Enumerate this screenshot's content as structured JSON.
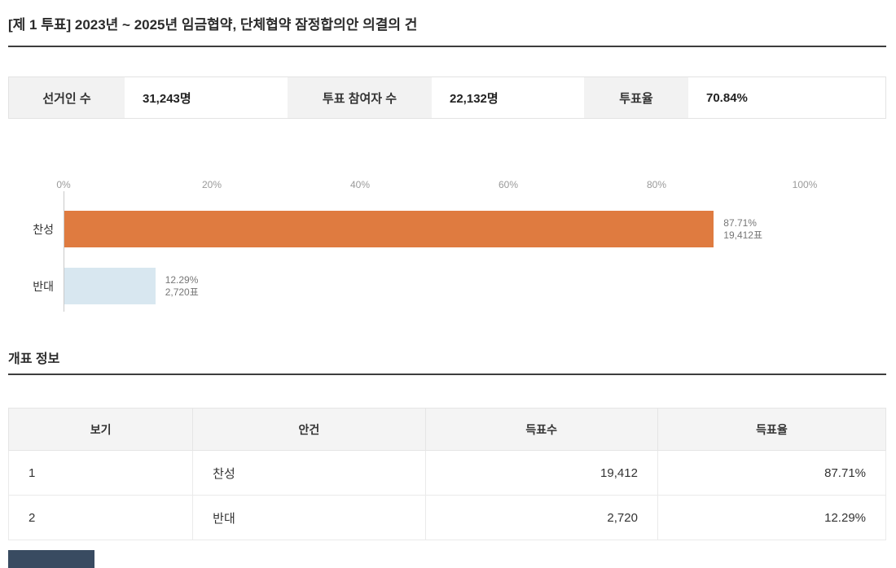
{
  "page": {
    "title": "[제 1 투표] 2023년 ~ 2025년 임금협약, 단체협약 잠정합의안 의결의 건"
  },
  "summary": {
    "items": [
      {
        "label": "선거인 수",
        "value": "31,243명"
      },
      {
        "label": "투표 참여자 수",
        "value": "22,132명"
      },
      {
        "label": "투표율",
        "value": "70.84%"
      }
    ]
  },
  "chart_data": {
    "type": "bar",
    "orientation": "horizontal",
    "categories": [
      "찬성",
      "반대"
    ],
    "values": [
      87.71,
      12.29
    ],
    "votes": [
      19412,
      2720
    ],
    "bar_labels": [
      [
        "87.71%",
        "19,412표"
      ],
      [
        "12.29%",
        "2,720표"
      ]
    ],
    "x_ticks": [
      "0%",
      "20%",
      "40%",
      "60%",
      "80%",
      "100%"
    ],
    "xlim": [
      0,
      100
    ],
    "grid": "vertical-axis-line-only",
    "legend": "none",
    "colors": {
      "approve_bar": "#df7b40",
      "oppose_bar": "#d8e7f0"
    }
  },
  "results_section": {
    "heading": "개표 정보",
    "table": {
      "columns": [
        "보기",
        "안건",
        "득표수",
        "득표율"
      ],
      "rows": [
        {
          "no": "1",
          "option": "찬성",
          "votes": "19,412",
          "rate": "87.71%"
        },
        {
          "no": "2",
          "option": "반대",
          "votes": "2,720",
          "rate": "12.29%"
        }
      ]
    }
  },
  "colors": {
    "heading_underline": "#3d3d3d",
    "summary_label_bg": "#f2f2f2",
    "table_header_bg": "#f4f4f4",
    "tick_text": "#9a9a9a",
    "partial_button": "#394b61"
  }
}
